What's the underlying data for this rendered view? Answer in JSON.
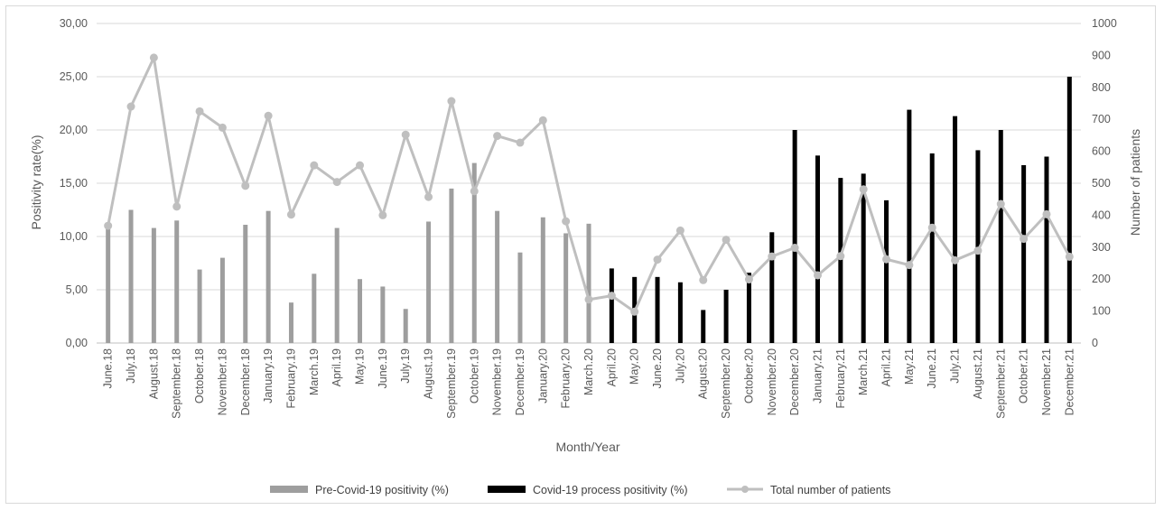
{
  "chart_data": {
    "type": "bar",
    "xlabel": "Month/Year",
    "ylabel_left": "Positivity rate(%)",
    "ylabel_right": "Number of patients",
    "ylim_left": [
      0,
      30
    ],
    "ylim_right": [
      0,
      1000
    ],
    "yticks_left": [
      "0,00",
      "5,00",
      "10,00",
      "15,00",
      "20,00",
      "25,00",
      "30,00"
    ],
    "yticks_right": [
      "0",
      "100",
      "200",
      "300",
      "400",
      "500",
      "600",
      "700",
      "800",
      "900",
      "1000"
    ],
    "grid": "horizontal",
    "legend_position": "bottom",
    "categories": [
      "June.18",
      "July.18",
      "August.18",
      "September.18",
      "October.18",
      "November.18",
      "December.18",
      "January.19",
      "February.19",
      "March.19",
      "April.19",
      "May.19",
      "June.19",
      "July.19",
      "August.19",
      "September.19",
      "October.19",
      "November.19",
      "December.19",
      "January.20",
      "February.20",
      "March.20",
      "April.20",
      "May.20",
      "June.20",
      "July.20",
      "August.20",
      "September.20",
      "October.20",
      "November.20",
      "December.20",
      "January.21",
      "February.21",
      "March.21",
      "April.21",
      "May.21",
      "June.21",
      "July.21",
      "August.21",
      "September.21",
      "October.21",
      "November.21",
      "December.21"
    ],
    "series": [
      {
        "name": "Pre-Covid-19 positivity (%)",
        "kind": "bar",
        "axis": "left",
        "color": "#9e9e9e",
        "values": [
          11.0,
          12.5,
          10.8,
          11.5,
          6.9,
          8.0,
          11.1,
          12.4,
          3.8,
          6.5,
          10.8,
          6.0,
          5.3,
          3.2,
          11.4,
          14.5,
          16.9,
          12.4,
          8.5,
          11.8,
          10.3,
          11.2,
          null,
          null,
          null,
          null,
          null,
          null,
          null,
          null,
          null,
          null,
          null,
          null,
          null,
          null,
          null,
          null,
          null,
          null,
          null,
          null,
          null
        ]
      },
      {
        "name": "Covid-19 process positivity (%)",
        "kind": "bar",
        "axis": "left",
        "color": "#000000",
        "values": [
          null,
          null,
          null,
          null,
          null,
          null,
          null,
          null,
          null,
          null,
          null,
          null,
          null,
          null,
          null,
          null,
          null,
          null,
          null,
          null,
          null,
          null,
          7.0,
          6.2,
          6.2,
          5.7,
          3.1,
          5.0,
          6.6,
          10.4,
          20.0,
          17.6,
          15.5,
          15.9,
          13.4,
          21.9,
          17.8,
          21.3,
          18.1,
          20.0,
          16.7,
          17.5,
          25.0
        ]
      },
      {
        "name": "Total number of patients",
        "kind": "line",
        "axis": "right",
        "color": "#bfbfbf",
        "values": [
          367,
          740,
          893,
          427,
          725,
          674,
          492,
          711,
          402,
          556,
          504,
          556,
          400,
          652,
          457,
          757,
          475,
          648,
          627,
          697,
          381,
          136,
          148,
          98,
          261,
          352,
          197,
          323,
          199,
          271,
          298,
          212,
          272,
          481,
          262,
          244,
          361,
          259,
          289,
          435,
          326,
          403,
          270
        ]
      }
    ]
  }
}
